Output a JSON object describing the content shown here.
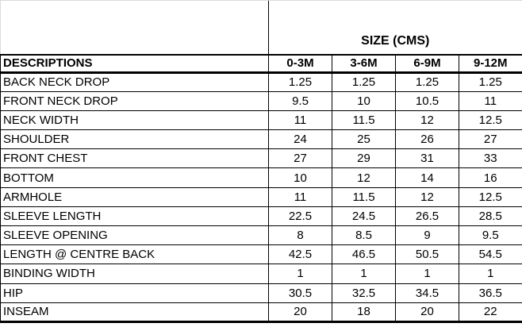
{
  "table": {
    "header_group_label": "SIZE (CMS)",
    "descriptions_label": "DESCRIPTIONS",
    "size_columns": [
      "0-3M",
      "3-6M",
      "6-9M",
      "9-12M"
    ],
    "rows": [
      {
        "label": "BACK NECK DROP",
        "values": [
          "1.25",
          "1.25",
          "1.25",
          "1.25"
        ]
      },
      {
        "label": "FRONT NECK DROP",
        "values": [
          "9.5",
          "10",
          "10.5",
          "11"
        ]
      },
      {
        "label": "NECK WIDTH",
        "values": [
          "11",
          "11.5",
          "12",
          "12.5"
        ]
      },
      {
        "label": "SHOULDER",
        "values": [
          "24",
          "25",
          "26",
          "27"
        ]
      },
      {
        "label": "FRONT CHEST",
        "values": [
          "27",
          "29",
          "31",
          "33"
        ]
      },
      {
        "label": "BOTTOM",
        "values": [
          "10",
          "12",
          "14",
          "16"
        ]
      },
      {
        "label": "ARMHOLE",
        "values": [
          "11",
          "11.5",
          "12",
          "12.5"
        ]
      },
      {
        "label": "SLEEVE LENGTH",
        "values": [
          "22.5",
          "24.5",
          "26.5",
          "28.5"
        ]
      },
      {
        "label": "SLEEVE OPENING",
        "values": [
          "8",
          "8.5",
          "9",
          "9.5"
        ]
      },
      {
        "label": "LENGTH @ CENTRE BACK",
        "values": [
          "42.5",
          "46.5",
          "50.5",
          "54.5"
        ]
      },
      {
        "label": "BINDING WIDTH",
        "values": [
          "1",
          "1",
          "1",
          "1"
        ]
      },
      {
        "label": "HIP",
        "values": [
          "30.5",
          "32.5",
          "34.5",
          "36.5"
        ]
      },
      {
        "label": "INSEAM",
        "values": [
          "20",
          "18",
          "20",
          "22"
        ]
      }
    ],
    "colors": {
      "text": "#000000",
      "border": "#000000",
      "background": "#ffffff",
      "page_edge": "#dadada"
    }
  }
}
